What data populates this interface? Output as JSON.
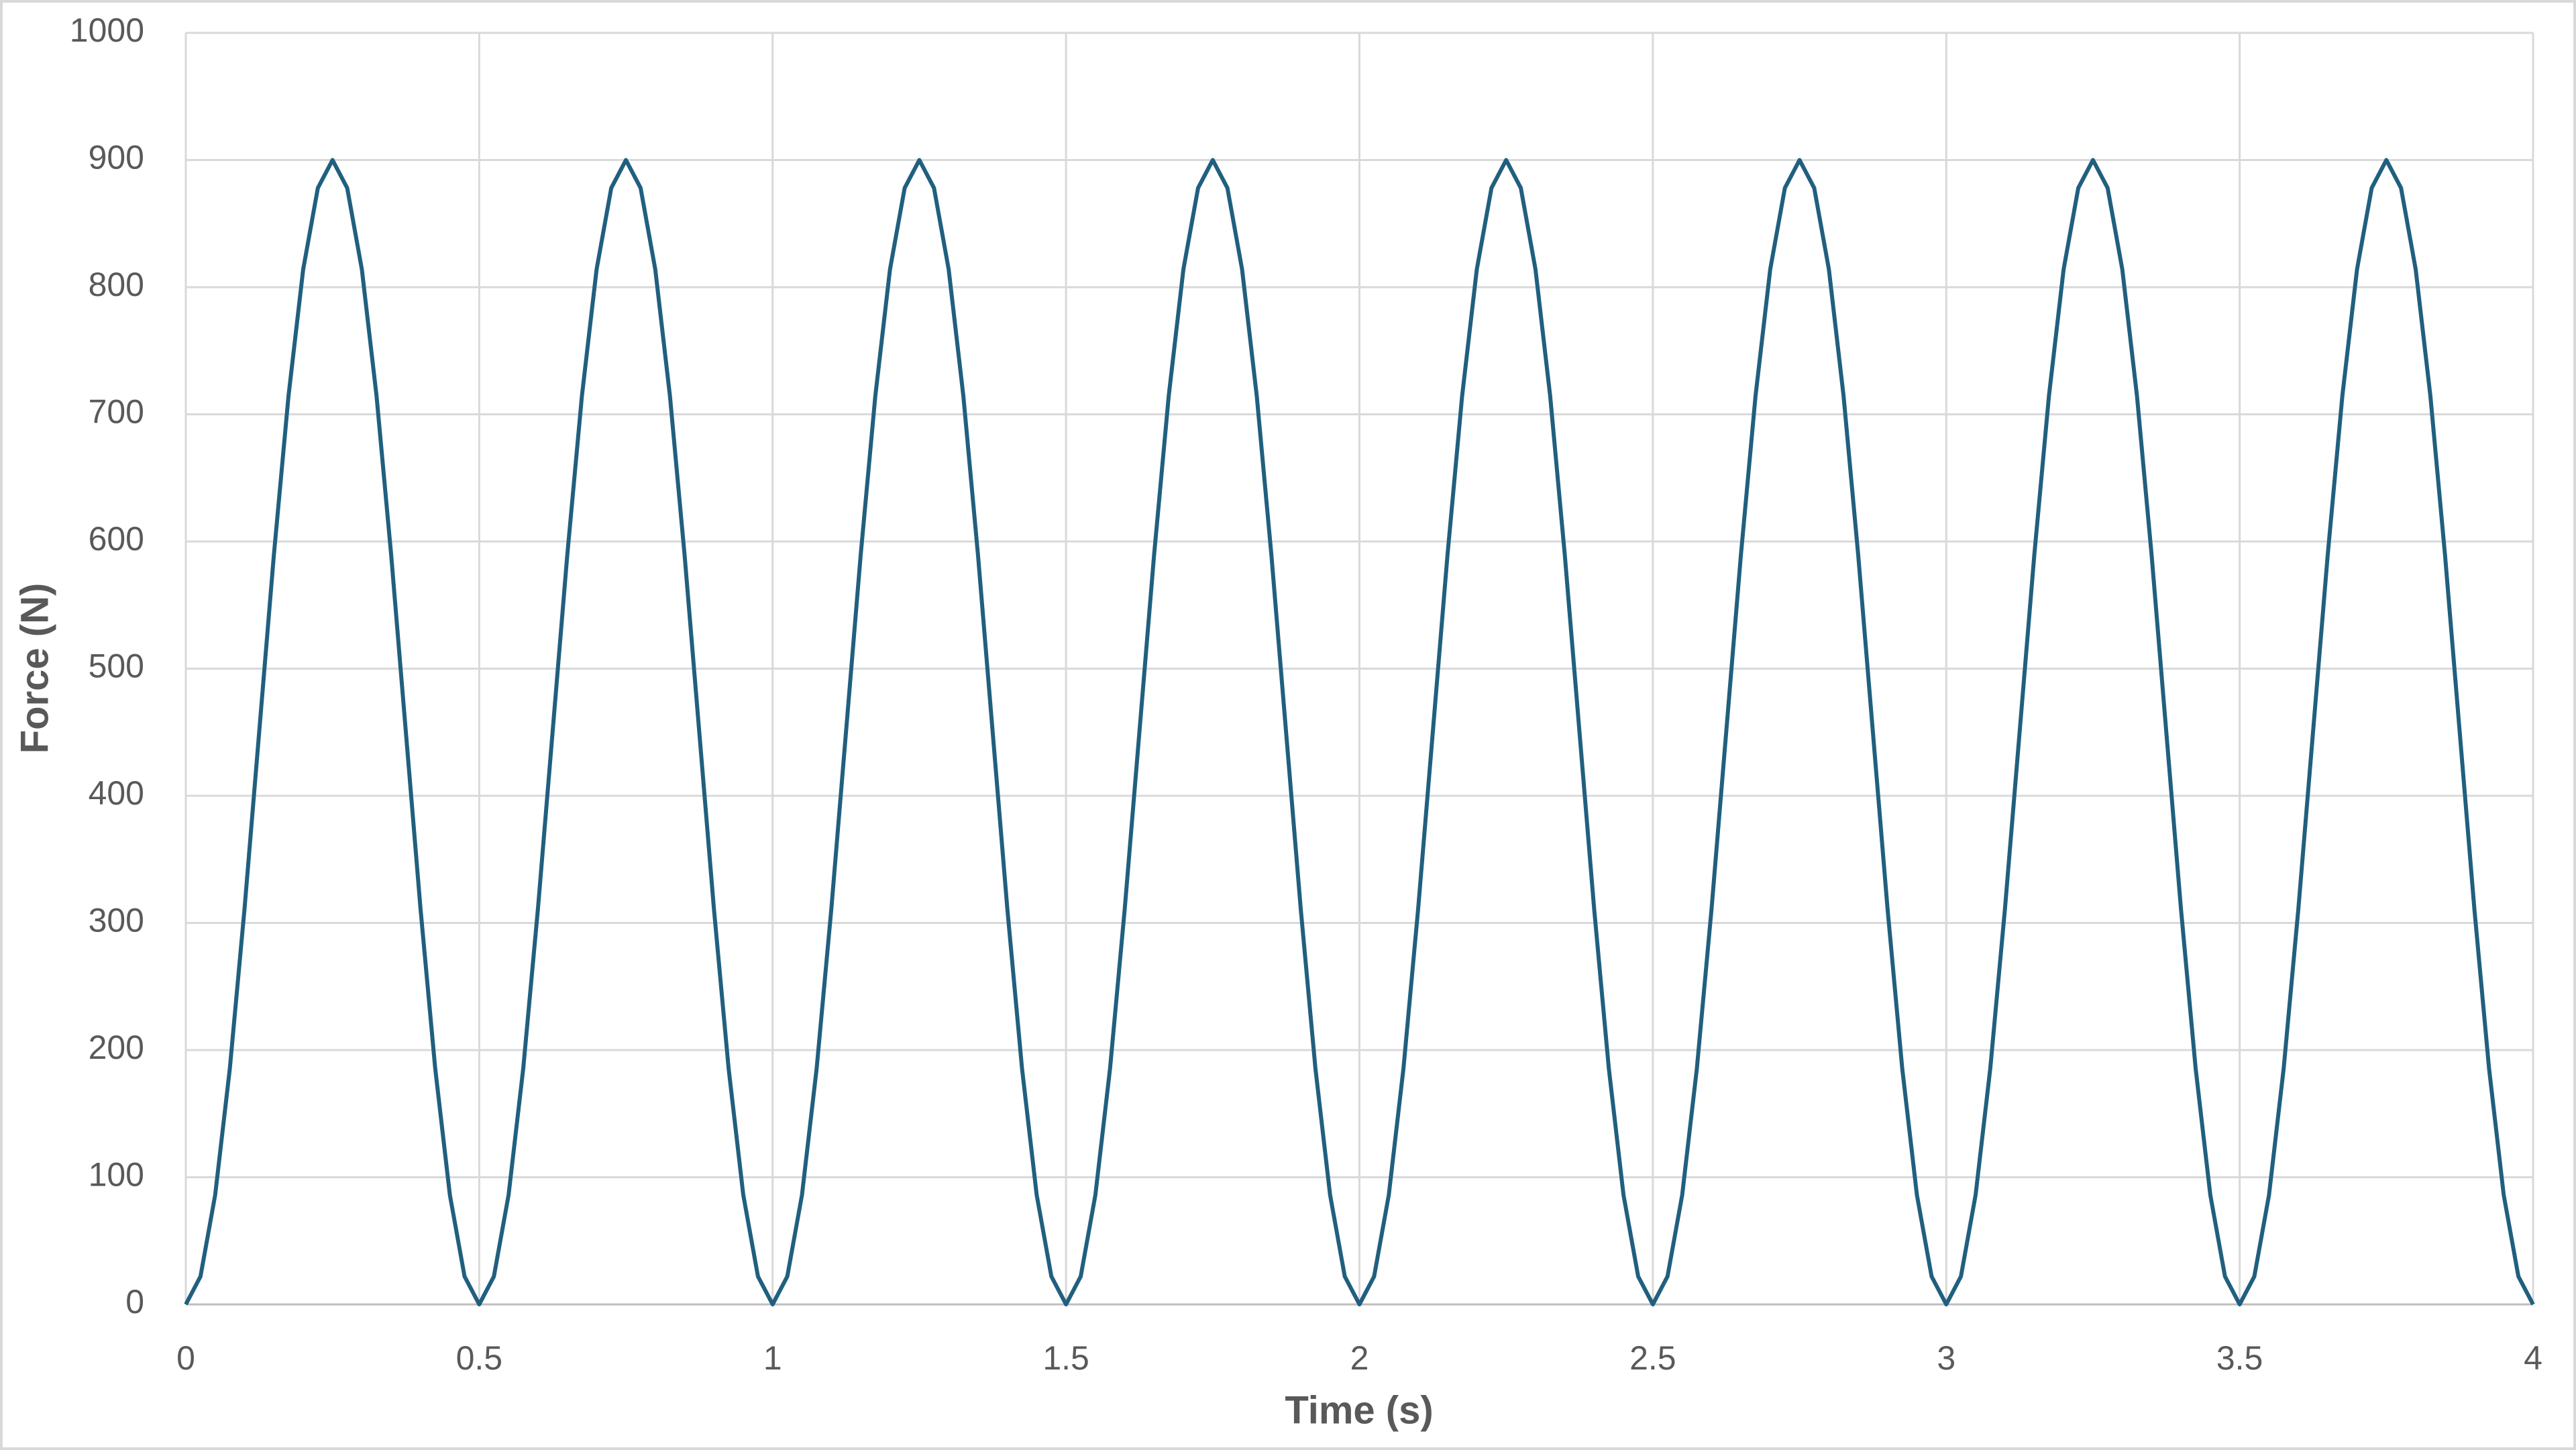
{
  "chart_data": {
    "type": "line",
    "xlabel": "Time (s)",
    "ylabel": "Force (N)",
    "x": [
      0,
      0.025,
      0.05,
      0.075,
      0.1,
      0.125,
      0.15,
      0.175,
      0.2,
      0.225,
      0.25,
      0.275,
      0.3,
      0.325,
      0.35,
      0.375,
      0.4,
      0.425,
      0.45,
      0.475,
      0.5,
      0.525,
      0.55,
      0.575,
      0.6,
      0.625,
      0.65,
      0.675,
      0.7,
      0.725,
      0.75,
      0.775,
      0.8,
      0.825,
      0.85,
      0.875,
      0.9,
      0.925,
      0.95,
      0.975,
      1,
      1.025,
      1.05,
      1.075,
      1.1,
      1.125,
      1.15,
      1.175,
      1.2,
      1.225,
      1.25,
      1.275,
      1.3,
      1.325,
      1.35,
      1.375,
      1.4,
      1.425,
      1.45,
      1.475,
      1.5,
      1.525,
      1.55,
      1.575,
      1.6,
      1.625,
      1.65,
      1.675,
      1.7,
      1.725,
      1.75,
      1.775,
      1.8,
      1.825,
      1.85,
      1.875,
      1.9,
      1.925,
      1.95,
      1.975,
      2,
      2.025,
      2.05,
      2.075,
      2.1,
      2.125,
      2.15,
      2.175,
      2.2,
      2.225,
      2.25,
      2.275,
      2.3,
      2.325,
      2.35,
      2.375,
      2.4,
      2.425,
      2.45,
      2.475,
      2.5,
      2.525,
      2.55,
      2.575,
      2.6,
      2.625,
      2.65,
      2.675,
      2.7,
      2.725,
      2.75,
      2.775,
      2.8,
      2.825,
      2.85,
      2.875,
      2.9,
      2.925,
      2.95,
      2.975,
      3,
      3.025,
      3.05,
      3.075,
      3.1,
      3.125,
      3.15,
      3.175,
      3.2,
      3.225,
      3.25,
      3.275,
      3.3,
      3.325,
      3.35,
      3.375,
      3.4,
      3.425,
      3.45,
      3.475,
      3.5,
      3.525,
      3.55,
      3.575,
      3.6,
      3.625,
      3.65,
      3.675,
      3.7,
      3.725,
      3.75,
      3.775,
      3.8,
      3.825,
      3.85,
      3.875,
      3.9,
      3.925,
      3.95,
      3.975,
      4
    ],
    "series": [
      {
        "color": "#215f7e",
        "values": [
          0,
          22,
          86,
          185.5,
          310.9,
          450,
          589.1,
          714.5,
          814,
          878,
          900,
          878,
          814,
          714.5,
          589.1,
          450,
          310.9,
          185.5,
          86,
          22,
          0,
          22,
          86,
          185.5,
          310.9,
          450,
          589.1,
          714.5,
          814,
          878,
          900,
          878,
          814,
          714.5,
          589.1,
          450,
          310.9,
          185.5,
          86,
          22,
          0,
          22,
          86,
          185.5,
          310.9,
          450,
          589.1,
          714.5,
          814,
          878,
          900,
          878,
          814,
          714.5,
          589.1,
          450,
          310.9,
          185.5,
          86,
          22,
          0,
          22,
          86,
          185.5,
          310.9,
          450,
          589.1,
          714.5,
          814,
          878,
          900,
          878,
          814,
          714.5,
          589.1,
          450,
          310.9,
          185.5,
          86,
          22,
          0,
          22,
          86,
          185.5,
          310.9,
          450,
          589.1,
          714.5,
          814,
          878,
          900,
          878,
          814,
          714.5,
          589.1,
          450,
          310.9,
          185.5,
          86,
          22,
          0,
          22,
          86,
          185.5,
          310.9,
          450,
          589.1,
          714.5,
          814,
          878,
          900,
          878,
          814,
          714.5,
          589.1,
          450,
          310.9,
          185.5,
          86,
          22,
          0,
          22,
          86,
          185.5,
          310.9,
          450,
          589.1,
          714.5,
          814,
          878,
          900,
          878,
          814,
          714.5,
          589.1,
          450,
          310.9,
          185.5,
          86,
          22,
          0,
          22,
          86,
          185.5,
          310.9,
          450,
          589.1,
          714.5,
          814,
          878,
          900,
          878,
          814,
          714.5,
          589.1,
          450,
          310.9,
          185.5,
          86,
          22,
          0
        ]
      }
    ],
    "xlim": [
      0,
      4
    ],
    "xticks": [
      0,
      0.5,
      1,
      1.5,
      2,
      2.5,
      3,
      3.5,
      4
    ],
    "ylim": [
      0,
      1000
    ],
    "yticks": [
      0,
      100,
      200,
      300,
      400,
      500,
      600,
      700,
      800,
      900,
      1000
    ],
    "grid": true
  }
}
